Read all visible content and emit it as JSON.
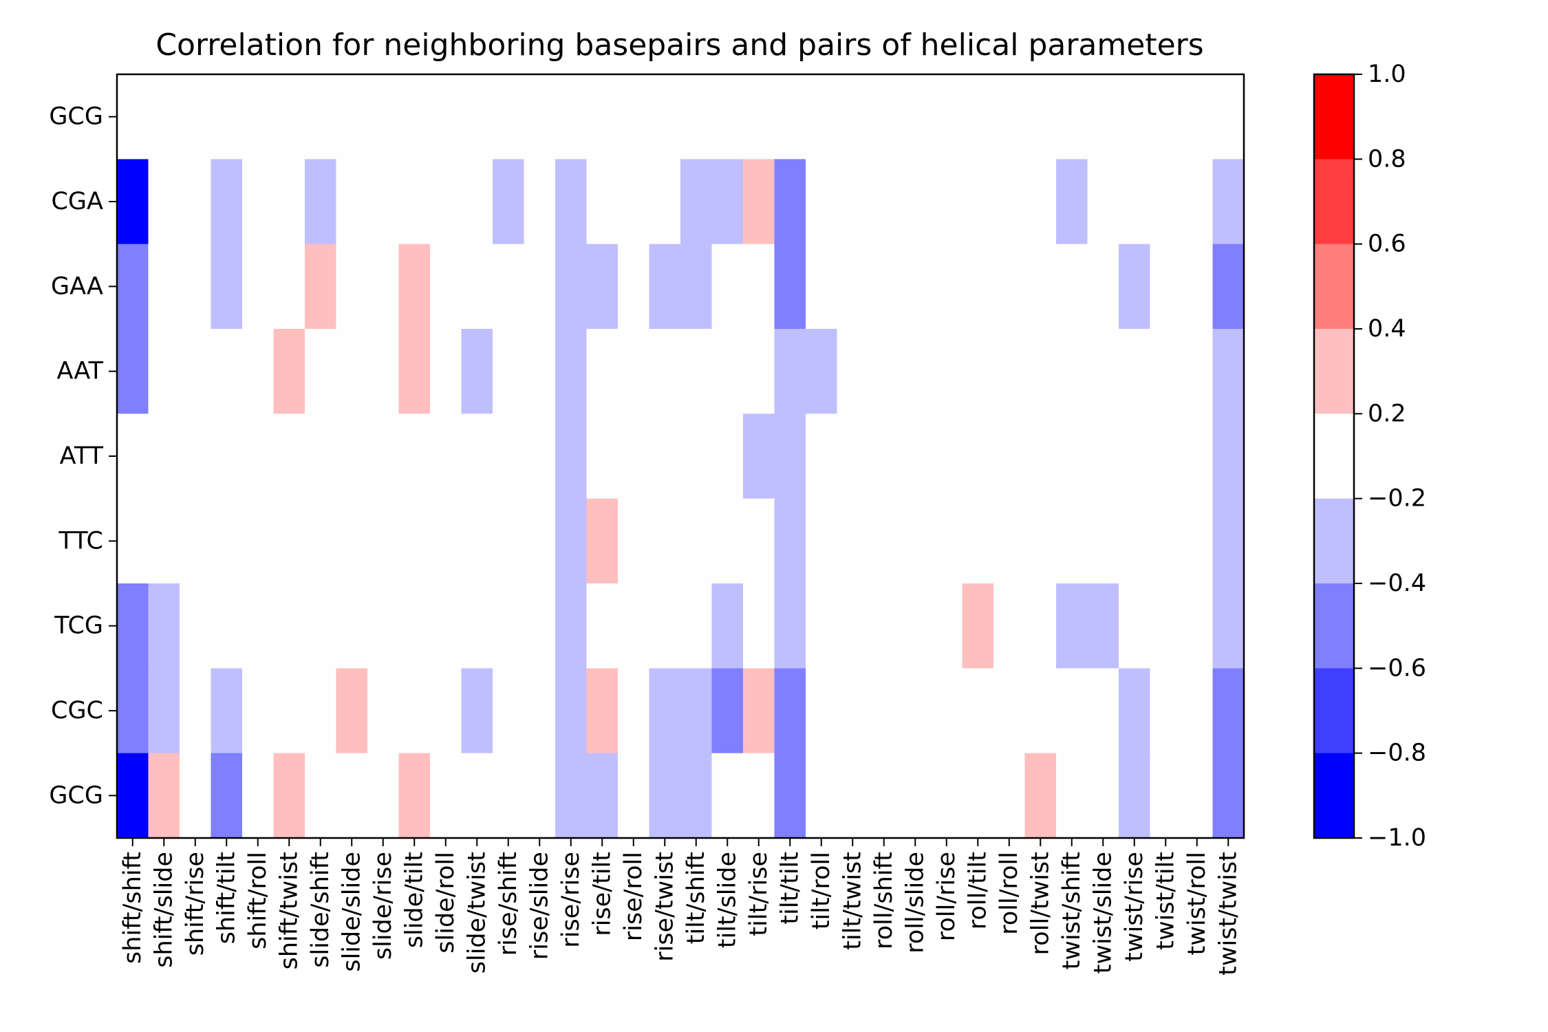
{
  "chart_data": {
    "type": "heatmap",
    "title": "Correlation for neighboring basepairs and pairs of helical parameters",
    "xlabel": "",
    "ylabel": "",
    "x_categories": [
      "shift/shift",
      "shift/slide",
      "shift/rise",
      "shift/tilt",
      "shift/roll",
      "shift/twist",
      "slide/shift",
      "slide/slide",
      "slide/rise",
      "slide/tilt",
      "slide/roll",
      "slide/twist",
      "rise/shift",
      "rise/slide",
      "rise/rise",
      "rise/tilt",
      "rise/roll",
      "rise/twist",
      "tilt/shift",
      "tilt/slide",
      "tilt/rise",
      "tilt/tilt",
      "tilt/roll",
      "tilt/twist",
      "roll/shift",
      "roll/slide",
      "roll/rise",
      "roll/tilt",
      "roll/roll",
      "roll/twist",
      "twist/shift",
      "twist/slide",
      "twist/rise",
      "twist/tilt",
      "twist/roll",
      "twist/twist"
    ],
    "y_categories": [
      "GCG",
      "CGA",
      "GAA",
      "AAT",
      "ATT",
      "TTC",
      "TCG",
      "CGC",
      "GCG"
    ],
    "values": [
      [
        0,
        0,
        0,
        0,
        0,
        0,
        0,
        0,
        0,
        0,
        0,
        0,
        0,
        0,
        0,
        0,
        0,
        0,
        0,
        0,
        0,
        0,
        0,
        0,
        0,
        0,
        0,
        0,
        0,
        0,
        0,
        0,
        0,
        0,
        0,
        0
      ],
      [
        -0.9,
        0,
        0,
        -0.3,
        0,
        0,
        -0.3,
        0,
        0,
        0,
        0,
        0,
        -0.3,
        0,
        -0.3,
        0,
        0,
        0,
        -0.3,
        -0.3,
        0.3,
        -0.6,
        0,
        0,
        0,
        0,
        0,
        0,
        0,
        0,
        -0.3,
        0,
        0,
        0,
        0,
        -0.3
      ],
      [
        -0.5,
        0,
        0,
        -0.3,
        0,
        0,
        0.3,
        0,
        0,
        0.3,
        0,
        0,
        0,
        0,
        -0.3,
        -0.3,
        0,
        -0.3,
        -0.3,
        0,
        0,
        -0.6,
        0,
        0,
        0,
        0,
        0,
        0,
        0,
        0,
        0,
        0,
        -0.3,
        0,
        0,
        -0.6
      ],
      [
        -0.5,
        0,
        0,
        0,
        0,
        0.3,
        0,
        0,
        0,
        0.3,
        0,
        -0.3,
        0,
        0,
        -0.3,
        0,
        0,
        0,
        0,
        0,
        0,
        -0.3,
        -0.3,
        0,
        0,
        0,
        0,
        0,
        0,
        0,
        0,
        0,
        0,
        0,
        0,
        -0.3
      ],
      [
        0,
        0,
        0,
        0,
        0,
        0,
        0,
        0,
        0,
        0,
        0,
        0,
        0,
        0,
        -0.3,
        0,
        0,
        0,
        0,
        0,
        -0.3,
        -0.3,
        0,
        0,
        0,
        0,
        0,
        0,
        0,
        0,
        0,
        0,
        0,
        0,
        0,
        -0.3
      ],
      [
        0,
        0,
        0,
        0,
        0,
        0,
        0,
        0,
        0,
        0,
        0,
        0,
        0,
        0,
        -0.3,
        0.3,
        0,
        0,
        0,
        0,
        0,
        -0.3,
        0,
        0,
        0,
        0,
        0,
        0,
        0,
        0,
        0,
        0,
        0,
        0,
        0,
        -0.3
      ],
      [
        -0.5,
        -0.3,
        0,
        0,
        0,
        0,
        0,
        0,
        0,
        0,
        0,
        0,
        0,
        0,
        -0.3,
        0,
        0,
        0,
        0,
        -0.3,
        0,
        -0.3,
        0,
        0,
        0,
        0,
        0,
        0.3,
        0,
        0,
        -0.3,
        -0.3,
        0,
        0,
        0,
        -0.3
      ],
      [
        -0.5,
        -0.3,
        0,
        -0.3,
        0,
        0,
        0,
        0.3,
        0,
        0,
        0,
        -0.3,
        0,
        0,
        -0.3,
        0.3,
        0,
        -0.3,
        -0.3,
        -0.5,
        0.3,
        -0.5,
        0,
        0,
        0,
        0,
        0,
        0,
        0,
        0,
        0,
        0,
        -0.3,
        0,
        0,
        -0.5
      ],
      [
        -0.9,
        0.3,
        0,
        -0.5,
        0,
        0.3,
        0,
        0,
        0,
        0.3,
        0,
        0,
        0,
        0,
        -0.3,
        -0.3,
        0,
        -0.3,
        -0.3,
        0,
        0,
        -0.5,
        0,
        0,
        0,
        0,
        0,
        0,
        0,
        0.3,
        0,
        0,
        -0.3,
        0,
        0,
        -0.5
      ]
    ],
    "colorbar": {
      "range": [
        -1.0,
        1.0
      ],
      "boundaries": [
        -1.0,
        -0.8,
        -0.6,
        -0.4,
        -0.2,
        0.2,
        0.4,
        0.6,
        0.8,
        1.0
      ],
      "colors": [
        "#0000ff",
        "#3f3fff",
        "#7f7fff",
        "#bfbfff",
        "#fefefe",
        "#ffbfbf",
        "#ff7f7f",
        "#ff3f3f",
        "#ff0000"
      ],
      "tick_labels": [
        "1.0",
        "0.8",
        "0.6",
        "0.4",
        "0.2",
        "−0.2",
        "−0.4",
        "−0.6",
        "−0.8",
        "−1.0"
      ]
    },
    "grid": false,
    "legend": "colorbar-right"
  }
}
